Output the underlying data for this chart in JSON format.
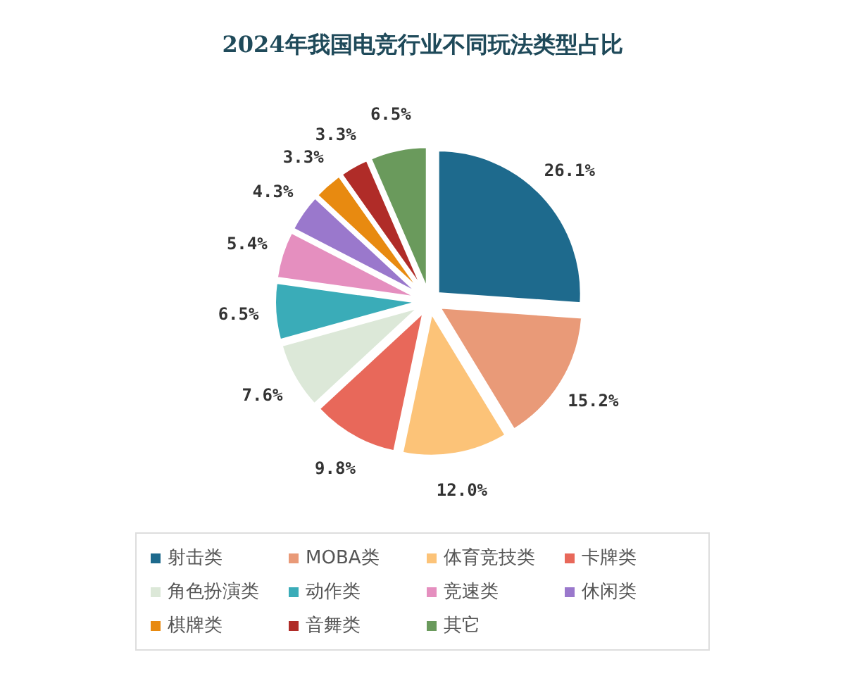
{
  "chart_data": {
    "type": "pie",
    "title": "2024年我国电竞行业不同玩法类型占比",
    "categories": [
      "射击类",
      "MOBA类",
      "体育竞技类",
      "卡牌类",
      "角色扮演类",
      "动作类",
      "竞速类",
      "休闲类",
      "棋牌类",
      "音舞类",
      "其它"
    ],
    "values": [
      26.1,
      15.2,
      12.0,
      9.8,
      7.6,
      6.5,
      5.4,
      4.3,
      3.3,
      3.3,
      6.5
    ],
    "colors": [
      "#1e6a8d",
      "#e99a78",
      "#fcc378",
      "#e8685a",
      "#dce8d8",
      "#3aacb8",
      "#e58fbf",
      "#9a78cc",
      "#e88a10",
      "#b02c28",
      "#6a9a5c"
    ],
    "value_labels": [
      "26.1%",
      "15.2%",
      "12.0%",
      "9.8%",
      "7.6%",
      "6.5%",
      "5.4%",
      "4.3%",
      "3.3%",
      "3.3%",
      "6.5%"
    ],
    "legend": "bottom"
  }
}
